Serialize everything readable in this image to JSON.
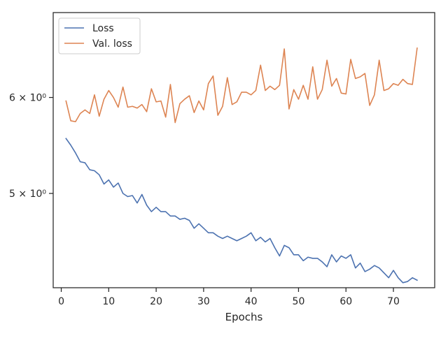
{
  "chart_data": {
    "type": "line",
    "xlabel": "Epochs",
    "ylabel": "",
    "yscale": "log",
    "xlim": [
      -1.7,
      78.7
    ],
    "ylim": [
      4.18,
      7.05
    ],
    "x_ticks": [
      0,
      10,
      20,
      30,
      40,
      50,
      60,
      70
    ],
    "y_ticks": [
      {
        "value": 6.0,
        "label": "6 × 10⁰"
      },
      {
        "value": 5.0,
        "label": "5 × 10⁰"
      }
    ],
    "grid": false,
    "legend": "top-left",
    "series": [
      {
        "name": "Loss",
        "color": "#4c72b0",
        "x": [
          1,
          2,
          3,
          4,
          5,
          6,
          7,
          8,
          9,
          10,
          11,
          12,
          13,
          14,
          15,
          16,
          17,
          18,
          19,
          20,
          21,
          22,
          23,
          24,
          25,
          26,
          27,
          28,
          29,
          30,
          31,
          32,
          33,
          34,
          35,
          36,
          37,
          38,
          39,
          40,
          41,
          42,
          43,
          44,
          45,
          46,
          47,
          48,
          49,
          50,
          51,
          52,
          53,
          54,
          55,
          56,
          57,
          58,
          59,
          60,
          61,
          62,
          63,
          64,
          65,
          66,
          67,
          68,
          69,
          70,
          71,
          72,
          73,
          74,
          75
        ],
        "values": [
          5.55,
          5.48,
          5.4,
          5.31,
          5.3,
          5.23,
          5.22,
          5.18,
          5.09,
          5.13,
          5.06,
          5.1,
          5.0,
          4.97,
          4.98,
          4.91,
          4.99,
          4.89,
          4.83,
          4.87,
          4.83,
          4.83,
          4.79,
          4.79,
          4.76,
          4.77,
          4.75,
          4.68,
          4.72,
          4.68,
          4.64,
          4.64,
          4.61,
          4.59,
          4.61,
          4.59,
          4.57,
          4.59,
          4.61,
          4.64,
          4.57,
          4.6,
          4.56,
          4.59,
          4.51,
          4.44,
          4.53,
          4.51,
          4.45,
          4.45,
          4.4,
          4.43,
          4.42,
          4.42,
          4.39,
          4.35,
          4.45,
          4.39,
          4.44,
          4.42,
          4.45,
          4.34,
          4.38,
          4.31,
          4.33,
          4.36,
          4.34,
          4.3,
          4.26,
          4.32,
          4.26,
          4.22,
          4.23,
          4.26,
          4.24
        ]
      },
      {
        "name": "Val. loss",
        "color": "#dd8452",
        "x": [
          1,
          2,
          3,
          4,
          5,
          6,
          7,
          8,
          9,
          10,
          11,
          12,
          13,
          14,
          15,
          16,
          17,
          18,
          19,
          20,
          21,
          22,
          23,
          24,
          25,
          26,
          27,
          28,
          29,
          30,
          31,
          32,
          33,
          34,
          35,
          36,
          37,
          38,
          39,
          40,
          41,
          42,
          43,
          44,
          45,
          46,
          47,
          48,
          49,
          50,
          51,
          52,
          53,
          54,
          55,
          56,
          57,
          58,
          59,
          60,
          61,
          62,
          63,
          64,
          65,
          66,
          67,
          68,
          69,
          70,
          71,
          72,
          73,
          74,
          75
        ],
        "values": [
          5.96,
          5.74,
          5.73,
          5.82,
          5.86,
          5.82,
          6.03,
          5.79,
          5.98,
          6.08,
          6.0,
          5.89,
          6.12,
          5.89,
          5.9,
          5.88,
          5.92,
          5.84,
          6.1,
          5.95,
          5.96,
          5.78,
          6.15,
          5.72,
          5.93,
          5.98,
          6.02,
          5.83,
          5.96,
          5.86,
          6.16,
          6.25,
          5.8,
          5.9,
          6.23,
          5.92,
          5.95,
          6.06,
          6.06,
          6.03,
          6.08,
          6.38,
          6.08,
          6.13,
          6.09,
          6.14,
          6.58,
          5.87,
          6.09,
          5.98,
          6.14,
          5.98,
          6.36,
          5.98,
          6.09,
          6.44,
          6.13,
          6.22,
          6.05,
          6.04,
          6.45,
          6.22,
          6.24,
          6.28,
          5.91,
          6.03,
          6.44,
          6.08,
          6.1,
          6.16,
          6.14,
          6.21,
          6.16,
          6.15,
          6.59
        ]
      }
    ]
  }
}
